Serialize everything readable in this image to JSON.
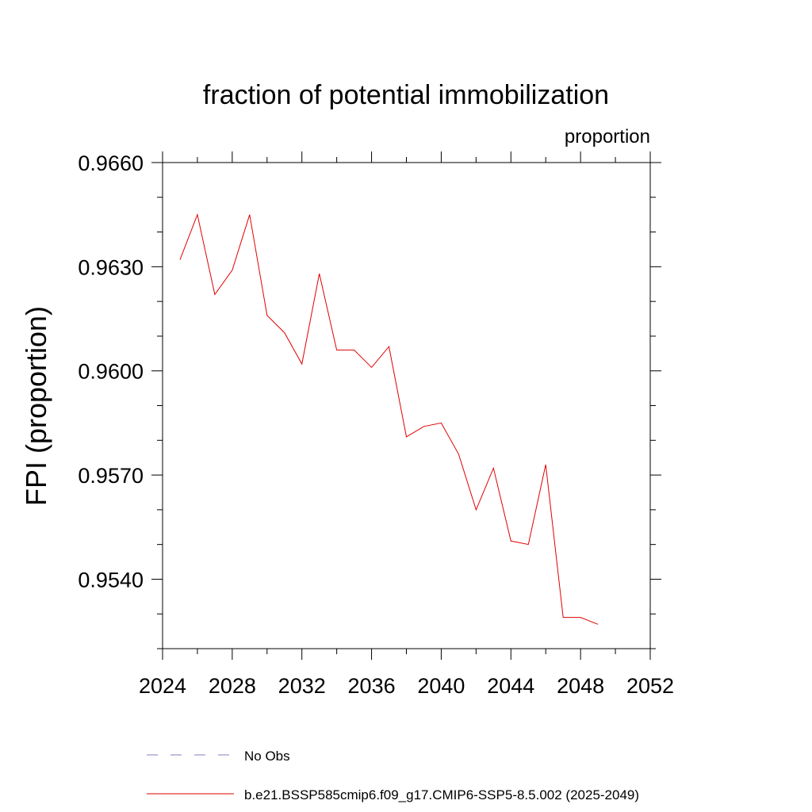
{
  "chart_data": {
    "type": "line",
    "title": "fraction of potential immobilization",
    "units_label": "proportion",
    "ylabel": "FPI  (proportion)",
    "xlabel": "",
    "xlim": [
      2024,
      2052
    ],
    "ylim": [
      0.952,
      0.966
    ],
    "x_ticks": [
      2024,
      2028,
      2032,
      2036,
      2040,
      2044,
      2048,
      2052
    ],
    "x_tick_labels": [
      "2024",
      "2028",
      "2032",
      "2036",
      "2040",
      "2044",
      "2048",
      "2052"
    ],
    "y_ticks": [
      0.954,
      0.957,
      0.96,
      0.963,
      0.966
    ],
    "y_tick_labels": [
      "0.9540",
      "0.9570",
      "0.9600",
      "0.9630",
      "0.9660"
    ],
    "grid": false,
    "legend_position": "bottom",
    "series": [
      {
        "name": "b.e21.BSSP585cmip6.f09_g17.CMIP6-SSP5-8.5.002 (2025-2049)",
        "color": "#e00000",
        "style": "solid",
        "x": [
          2025,
          2026,
          2027,
          2028,
          2029,
          2030,
          2031,
          2032,
          2033,
          2034,
          2035,
          2036,
          2037,
          2038,
          2039,
          2040,
          2041,
          2042,
          2043,
          2044,
          2045,
          2046,
          2047,
          2048,
          2049
        ],
        "values": [
          0.9632,
          0.9645,
          0.9622,
          0.9629,
          0.9645,
          0.9616,
          0.9611,
          0.9602,
          0.9628,
          0.9606,
          0.9606,
          0.9601,
          0.9607,
          0.9581,
          0.9584,
          0.9585,
          0.9576,
          0.956,
          0.9572,
          0.9551,
          0.955,
          0.9573,
          0.9529,
          0.9529,
          0.9527
        ]
      }
    ],
    "legend": [
      {
        "label": "No Obs",
        "color": "#8080c0",
        "style": "dashed"
      },
      {
        "label": "b.e21.BSSP585cmip6.f09_g17.CMIP6-SSP5-8.5.002 (2025-2049)",
        "color": "#e00000",
        "style": "solid"
      }
    ]
  }
}
